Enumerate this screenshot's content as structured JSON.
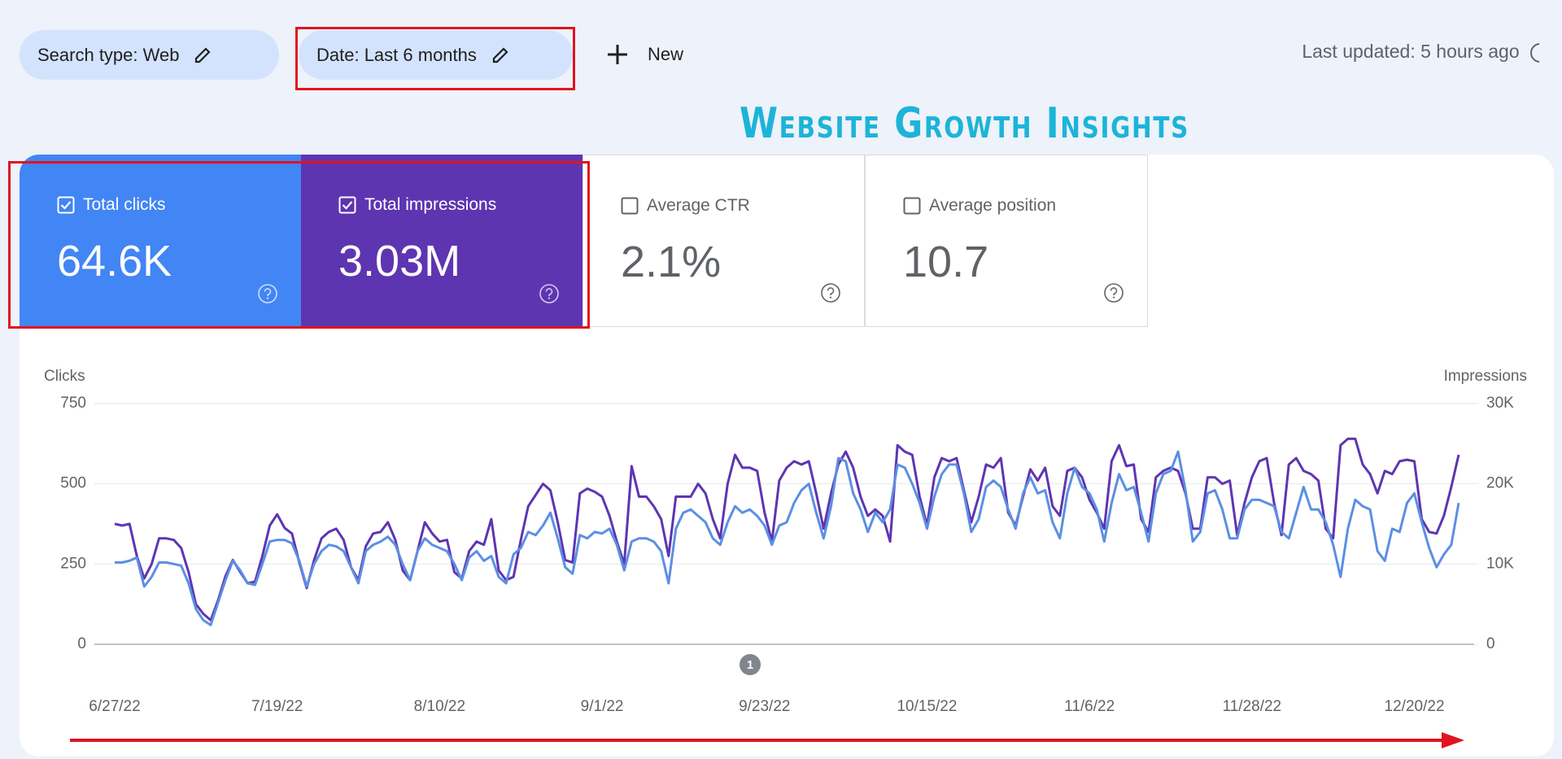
{
  "filters": [
    {
      "label": "Search type: Web"
    },
    {
      "label": "Date: Last 6 months"
    }
  ],
  "new_button": "New",
  "last_updated": "Last updated: 5 hours ago",
  "title": "Website Growth Insights",
  "metrics": [
    {
      "label": "Total clicks",
      "value": "64.6K",
      "checked": true,
      "color": "#4285f4"
    },
    {
      "label": "Total impressions",
      "value": "3.03M",
      "checked": true,
      "color": "#5e35b1"
    },
    {
      "label": "Average CTR",
      "value": "2.1%",
      "checked": false
    },
    {
      "label": "Average position",
      "value": "10.7",
      "checked": false
    }
  ],
  "chart_data": {
    "type": "line",
    "y_label": "Clicks",
    "y2_label": "Impressions",
    "annotations": [
      "1"
    ],
    "categories": [
      "6/27/22",
      null,
      null,
      null,
      null,
      null,
      null,
      null,
      null,
      null,
      null,
      null,
      null,
      null,
      null,
      null,
      null,
      null,
      null,
      null,
      null,
      null,
      "7/19/22",
      null,
      null,
      null,
      null,
      null,
      null,
      null,
      null,
      null,
      null,
      null,
      null,
      null,
      null,
      null,
      null,
      null,
      null,
      null,
      null,
      null,
      "8/10/22",
      null,
      null,
      null,
      null,
      null,
      null,
      null,
      null,
      null,
      null,
      null,
      null,
      null,
      null,
      null,
      null,
      null,
      null,
      null,
      null,
      null,
      "9/1/22",
      null,
      null,
      null,
      null,
      null,
      null,
      null,
      null,
      null,
      null,
      null,
      null,
      null,
      null,
      null,
      null,
      null,
      null,
      null,
      null,
      null,
      "9/23/22",
      null,
      null,
      null,
      null,
      null,
      null,
      null,
      null,
      null,
      null,
      null,
      null,
      null,
      null,
      null,
      null,
      null,
      null,
      null,
      null,
      null,
      "10/15/22",
      null,
      null,
      null,
      null,
      null,
      null,
      null,
      null,
      null,
      null,
      null,
      null,
      null,
      null,
      null,
      null,
      null,
      null,
      null,
      null,
      null,
      "11/6/22",
      null,
      null,
      null,
      null,
      null,
      null,
      null,
      null,
      null,
      null,
      null,
      null,
      null,
      null,
      null,
      null,
      null,
      null,
      null,
      null,
      null,
      "11/28/22",
      null,
      null,
      null,
      null,
      null,
      null,
      null,
      null,
      null,
      null,
      null,
      null,
      null,
      null,
      null,
      null,
      null,
      null,
      null,
      null,
      null,
      "12/20/22",
      null,
      null,
      null,
      null,
      null,
      null
    ],
    "ylim": [
      0,
      750
    ],
    "yticks": [
      0,
      250,
      500,
      750
    ],
    "y2lim": [
      0,
      30000
    ],
    "y2ticks": [
      0,
      {
        "value": 10000,
        "label": "10K"
      },
      {
        "value": 20000,
        "label": "20K"
      },
      {
        "value": 30000,
        "label": "30K"
      }
    ],
    "grid": true,
    "series": [
      {
        "color": "#5b8fe3",
        "axis": "y",
        "values": [
          255,
          255,
          260,
          270,
          180,
          210,
          255,
          255,
          250,
          245,
          190,
          110,
          75,
          60,
          130,
          200,
          260,
          230,
          190,
          185,
          250,
          320,
          325,
          325,
          315,
          260,
          180,
          250,
          290,
          310,
          305,
          290,
          240,
          190,
          290,
          310,
          320,
          335,
          310,
          250,
          200,
          290,
          330,
          310,
          300,
          290,
          250,
          200,
          270,
          290,
          260,
          275,
          210,
          190,
          280,
          300,
          350,
          340,
          370,
          410,
          330,
          240,
          220,
          340,
          330,
          350,
          345,
          360,
          310,
          230,
          320,
          330,
          330,
          320,
          290,
          190,
          360,
          410,
          420,
          400,
          380,
          330,
          310,
          380,
          430,
          410,
          420,
          400,
          370,
          310,
          370,
          380,
          440,
          480,
          500,
          410,
          330,
          430,
          580,
          570,
          470,
          420,
          350,
          410,
          380,
          420,
          560,
          550,
          500,
          440,
          360,
          460,
          530,
          560,
          560,
          470,
          350,
          390,
          490,
          510,
          490,
          420,
          360,
          470,
          520,
          470,
          480,
          380,
          330,
          470,
          550,
          490,
          470,
          420,
          320,
          440,
          530,
          480,
          490,
          410,
          320,
          470,
          530,
          540,
          600,
          480,
          320,
          350,
          470,
          480,
          420,
          330,
          330,
          420,
          450,
          450,
          440,
          430,
          350,
          330,
          410,
          490,
          420,
          420,
          380,
          310,
          210,
          360,
          450,
          430,
          420,
          290,
          260,
          360,
          350,
          440,
          470,
          380,
          300,
          240,
          280,
          310,
          440
        ]
      },
      {
        "color": "#5e35b1",
        "axis": "y2",
        "values": [
          15000,
          14800,
          15000,
          11000,
          8200,
          10000,
          13200,
          13200,
          13000,
          12000,
          9000,
          5000,
          3800,
          3000,
          5500,
          8500,
          10500,
          9000,
          7600,
          7800,
          11000,
          14800,
          16200,
          14500,
          13800,
          10200,
          7000,
          10500,
          13200,
          14000,
          14400,
          13000,
          9600,
          8000,
          12200,
          13800,
          14000,
          15200,
          13000,
          9200,
          8000,
          11600,
          15200,
          13800,
          12800,
          13000,
          9000,
          8200,
          11600,
          12800,
          12400,
          15600,
          9200,
          8000,
          8400,
          13000,
          17200,
          18600,
          20000,
          19200,
          15200,
          10500,
          10200,
          18800,
          19400,
          19000,
          18400,
          16000,
          12800,
          10000,
          22200,
          18400,
          18400,
          17200,
          15600,
          11000,
          18400,
          18400,
          18400,
          20000,
          18800,
          15600,
          13200,
          20000,
          23600,
          22000,
          22000,
          21600,
          16400,
          12800,
          20400,
          22000,
          22800,
          22400,
          22800,
          18800,
          14400,
          18800,
          22400,
          24000,
          22000,
          18400,
          16000,
          16800,
          16000,
          12800,
          24800,
          24000,
          23600,
          18400,
          14800,
          20800,
          23200,
          22800,
          23200,
          19200,
          15200,
          18400,
          22400,
          22000,
          23200,
          16400,
          14800,
          18400,
          21800,
          20400,
          22000,
          17200,
          16000,
          21600,
          22000,
          20800,
          18000,
          16400,
          14400,
          22800,
          24800,
          22200,
          22400,
          15600,
          14000,
          20800,
          21600,
          22000,
          21600,
          18800,
          14400,
          14400,
          20800,
          20800,
          20000,
          20400,
          13600,
          17600,
          20800,
          22800,
          23200,
          17600,
          13600,
          22400,
          23200,
          21600,
          21200,
          20400,
          14400,
          13200,
          24800,
          25600,
          25600,
          22400,
          21200,
          18800,
          21600,
          21200,
          22800,
          23000,
          22800,
          15600,
          14000,
          13800,
          16000,
          19600,
          23600
        ]
      }
    ]
  }
}
